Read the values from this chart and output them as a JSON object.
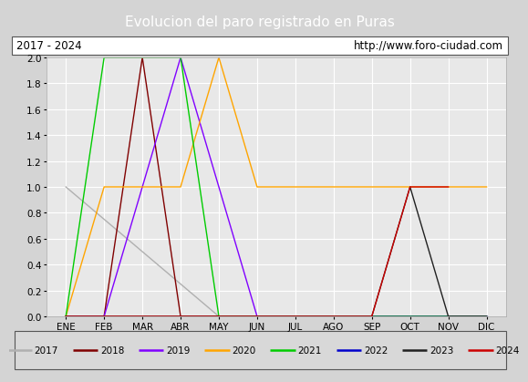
{
  "title": "Evolucion del paro registrado en Puras",
  "subtitle_left": "2017 - 2024",
  "subtitle_right": "http://www.foro-ciudad.com",
  "months": [
    "ENE",
    "FEB",
    "MAR",
    "ABR",
    "MAY",
    "JUN",
    "JUL",
    "AGO",
    "SEP",
    "OCT",
    "NOV",
    "DIC"
  ],
  "ylim": [
    0.0,
    2.0
  ],
  "background_color": "#d4d4d4",
  "plot_bg_color": "#e8e8e8",
  "title_bg_color": "#5b9bd5",
  "title_color": "#ffffff",
  "series": {
    "2017": {
      "color": "#b0b0b0",
      "data": [
        1.0,
        0.75,
        0.5,
        0.25,
        0.0,
        0.0,
        0.0,
        0.0,
        0.0,
        0.0,
        0.0,
        0.0
      ]
    },
    "2018": {
      "color": "#800000",
      "data": [
        0.0,
        0.0,
        2.0,
        0.0,
        0.0,
        0.0,
        0.0,
        0.0,
        0.0,
        0.0,
        0.0,
        0.0
      ]
    },
    "2019": {
      "color": "#8000ff",
      "data": [
        0.0,
        0.0,
        1.0,
        2.0,
        1.0,
        0.0,
        0.0,
        0.0,
        0.0,
        0.0,
        0.0,
        0.0
      ]
    },
    "2020": {
      "color": "#ffa500",
      "data": [
        0.0,
        1.0,
        1.0,
        1.0,
        2.0,
        1.0,
        1.0,
        1.0,
        1.0,
        1.0,
        1.0,
        1.0
      ]
    },
    "2021": {
      "color": "#00cc00",
      "data": [
        0.0,
        2.0,
        2.0,
        2.0,
        0.0,
        0.0,
        0.0,
        0.0,
        0.0,
        0.0,
        0.0,
        0.0
      ]
    },
    "2022": {
      "color": "#0000cc",
      "data": [
        0.0,
        0.0,
        0.0,
        0.0,
        0.0,
        0.0,
        0.0,
        0.0,
        0.0,
        0.0,
        0.0,
        0.0
      ]
    },
    "2023": {
      "color": "#202020",
      "data": [
        0.0,
        0.0,
        0.0,
        0.0,
        0.0,
        0.0,
        0.0,
        0.0,
        0.0,
        1.0,
        0.0,
        0.0
      ]
    },
    "2024": {
      "color": "#cc0000",
      "data": [
        0.0,
        0.0,
        0.0,
        0.0,
        0.0,
        0.0,
        0.0,
        0.0,
        0.0,
        1.0,
        1.0,
        null
      ]
    }
  },
  "legend_order": [
    "2017",
    "2018",
    "2019",
    "2020",
    "2021",
    "2022",
    "2023",
    "2024"
  ]
}
